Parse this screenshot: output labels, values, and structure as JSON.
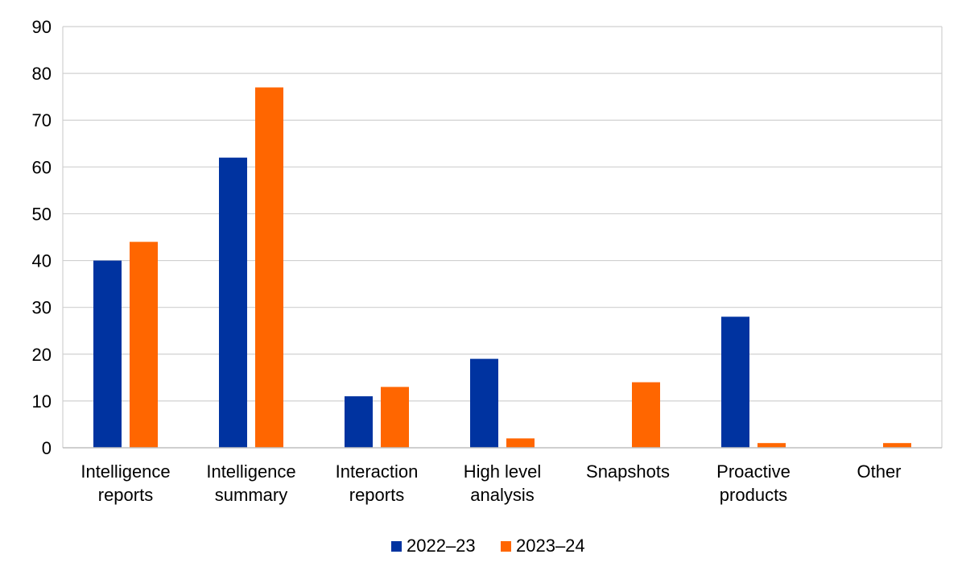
{
  "chart_data": {
    "type": "bar",
    "title": "",
    "xlabel": "",
    "ylabel": "",
    "ylim": [
      0,
      90
    ],
    "yticks": [
      0,
      10,
      20,
      30,
      40,
      50,
      60,
      70,
      80,
      90
    ],
    "grid": true,
    "legend_position": "bottom",
    "categories": [
      [
        "Intelligence",
        "reports"
      ],
      [
        "Intelligence",
        "summary"
      ],
      [
        "Interaction",
        "reports"
      ],
      [
        "High level",
        "analysis"
      ],
      [
        "Snapshots"
      ],
      [
        "Proactive",
        "products"
      ],
      [
        "Other"
      ]
    ],
    "series": [
      {
        "name": "2022–23",
        "color": "#0033A0",
        "values": [
          40,
          62,
          11,
          19,
          0,
          28,
          0
        ]
      },
      {
        "name": "2023–24",
        "color": "#FF6600",
        "values": [
          44,
          77,
          13,
          2,
          14,
          1,
          1
        ]
      }
    ]
  }
}
